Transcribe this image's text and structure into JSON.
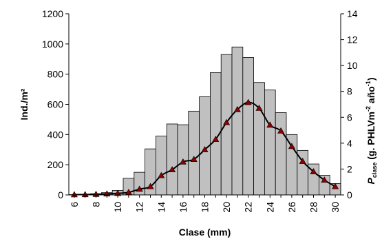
{
  "chart_data": {
    "type": "bar",
    "title": "",
    "xlabel": "Clase (mm)",
    "ylabel": "Ind./m²",
    "y2label": {
      "symbol": "P",
      "subscript": "clase",
      "unit_pre": " (g. PHLVm",
      "sup1": "-2",
      "unit_mid": " año",
      "sup2": "-1",
      "unit_post": ")"
    },
    "ylim": [
      0,
      1200
    ],
    "y2lim": [
      0,
      14
    ],
    "yticks": [
      "0",
      "200",
      "400",
      "600",
      "800",
      "1000",
      "1200"
    ],
    "y2ticks": [
      "0",
      "2",
      "4",
      "6",
      "8",
      "10",
      "12",
      "14"
    ],
    "xticks": [
      "6",
      "8",
      "10",
      "12",
      "14",
      "16",
      "18",
      "20",
      "22",
      "24",
      "26",
      "28",
      "30"
    ],
    "x": [
      6,
      7,
      8,
      9,
      10,
      11,
      12,
      13,
      14,
      15,
      16,
      17,
      18,
      19,
      20,
      21,
      22,
      23,
      24,
      25,
      26,
      27,
      28,
      29,
      30
    ],
    "series": [
      {
        "type": "bar",
        "axis": "left",
        "values": [
          2,
          5,
          8,
          15,
          30,
          110,
          150,
          305,
          390,
          470,
          465,
          555,
          650,
          810,
          930,
          980,
          910,
          745,
          695,
          545,
          400,
          295,
          205,
          130,
          75
        ],
        "color": "#c0c0c0"
      },
      {
        "type": "line",
        "axis": "right",
        "values": [
          0.02,
          0.03,
          0.05,
          0.08,
          0.12,
          0.2,
          0.45,
          0.65,
          1.5,
          1.95,
          2.55,
          2.75,
          3.5,
          4.3,
          5.6,
          6.6,
          7.15,
          6.7,
          5.4,
          4.95,
          3.75,
          2.6,
          1.8,
          1.15,
          0.65
        ],
        "color": "#000000",
        "marker_color": "#8b0000"
      }
    ]
  }
}
